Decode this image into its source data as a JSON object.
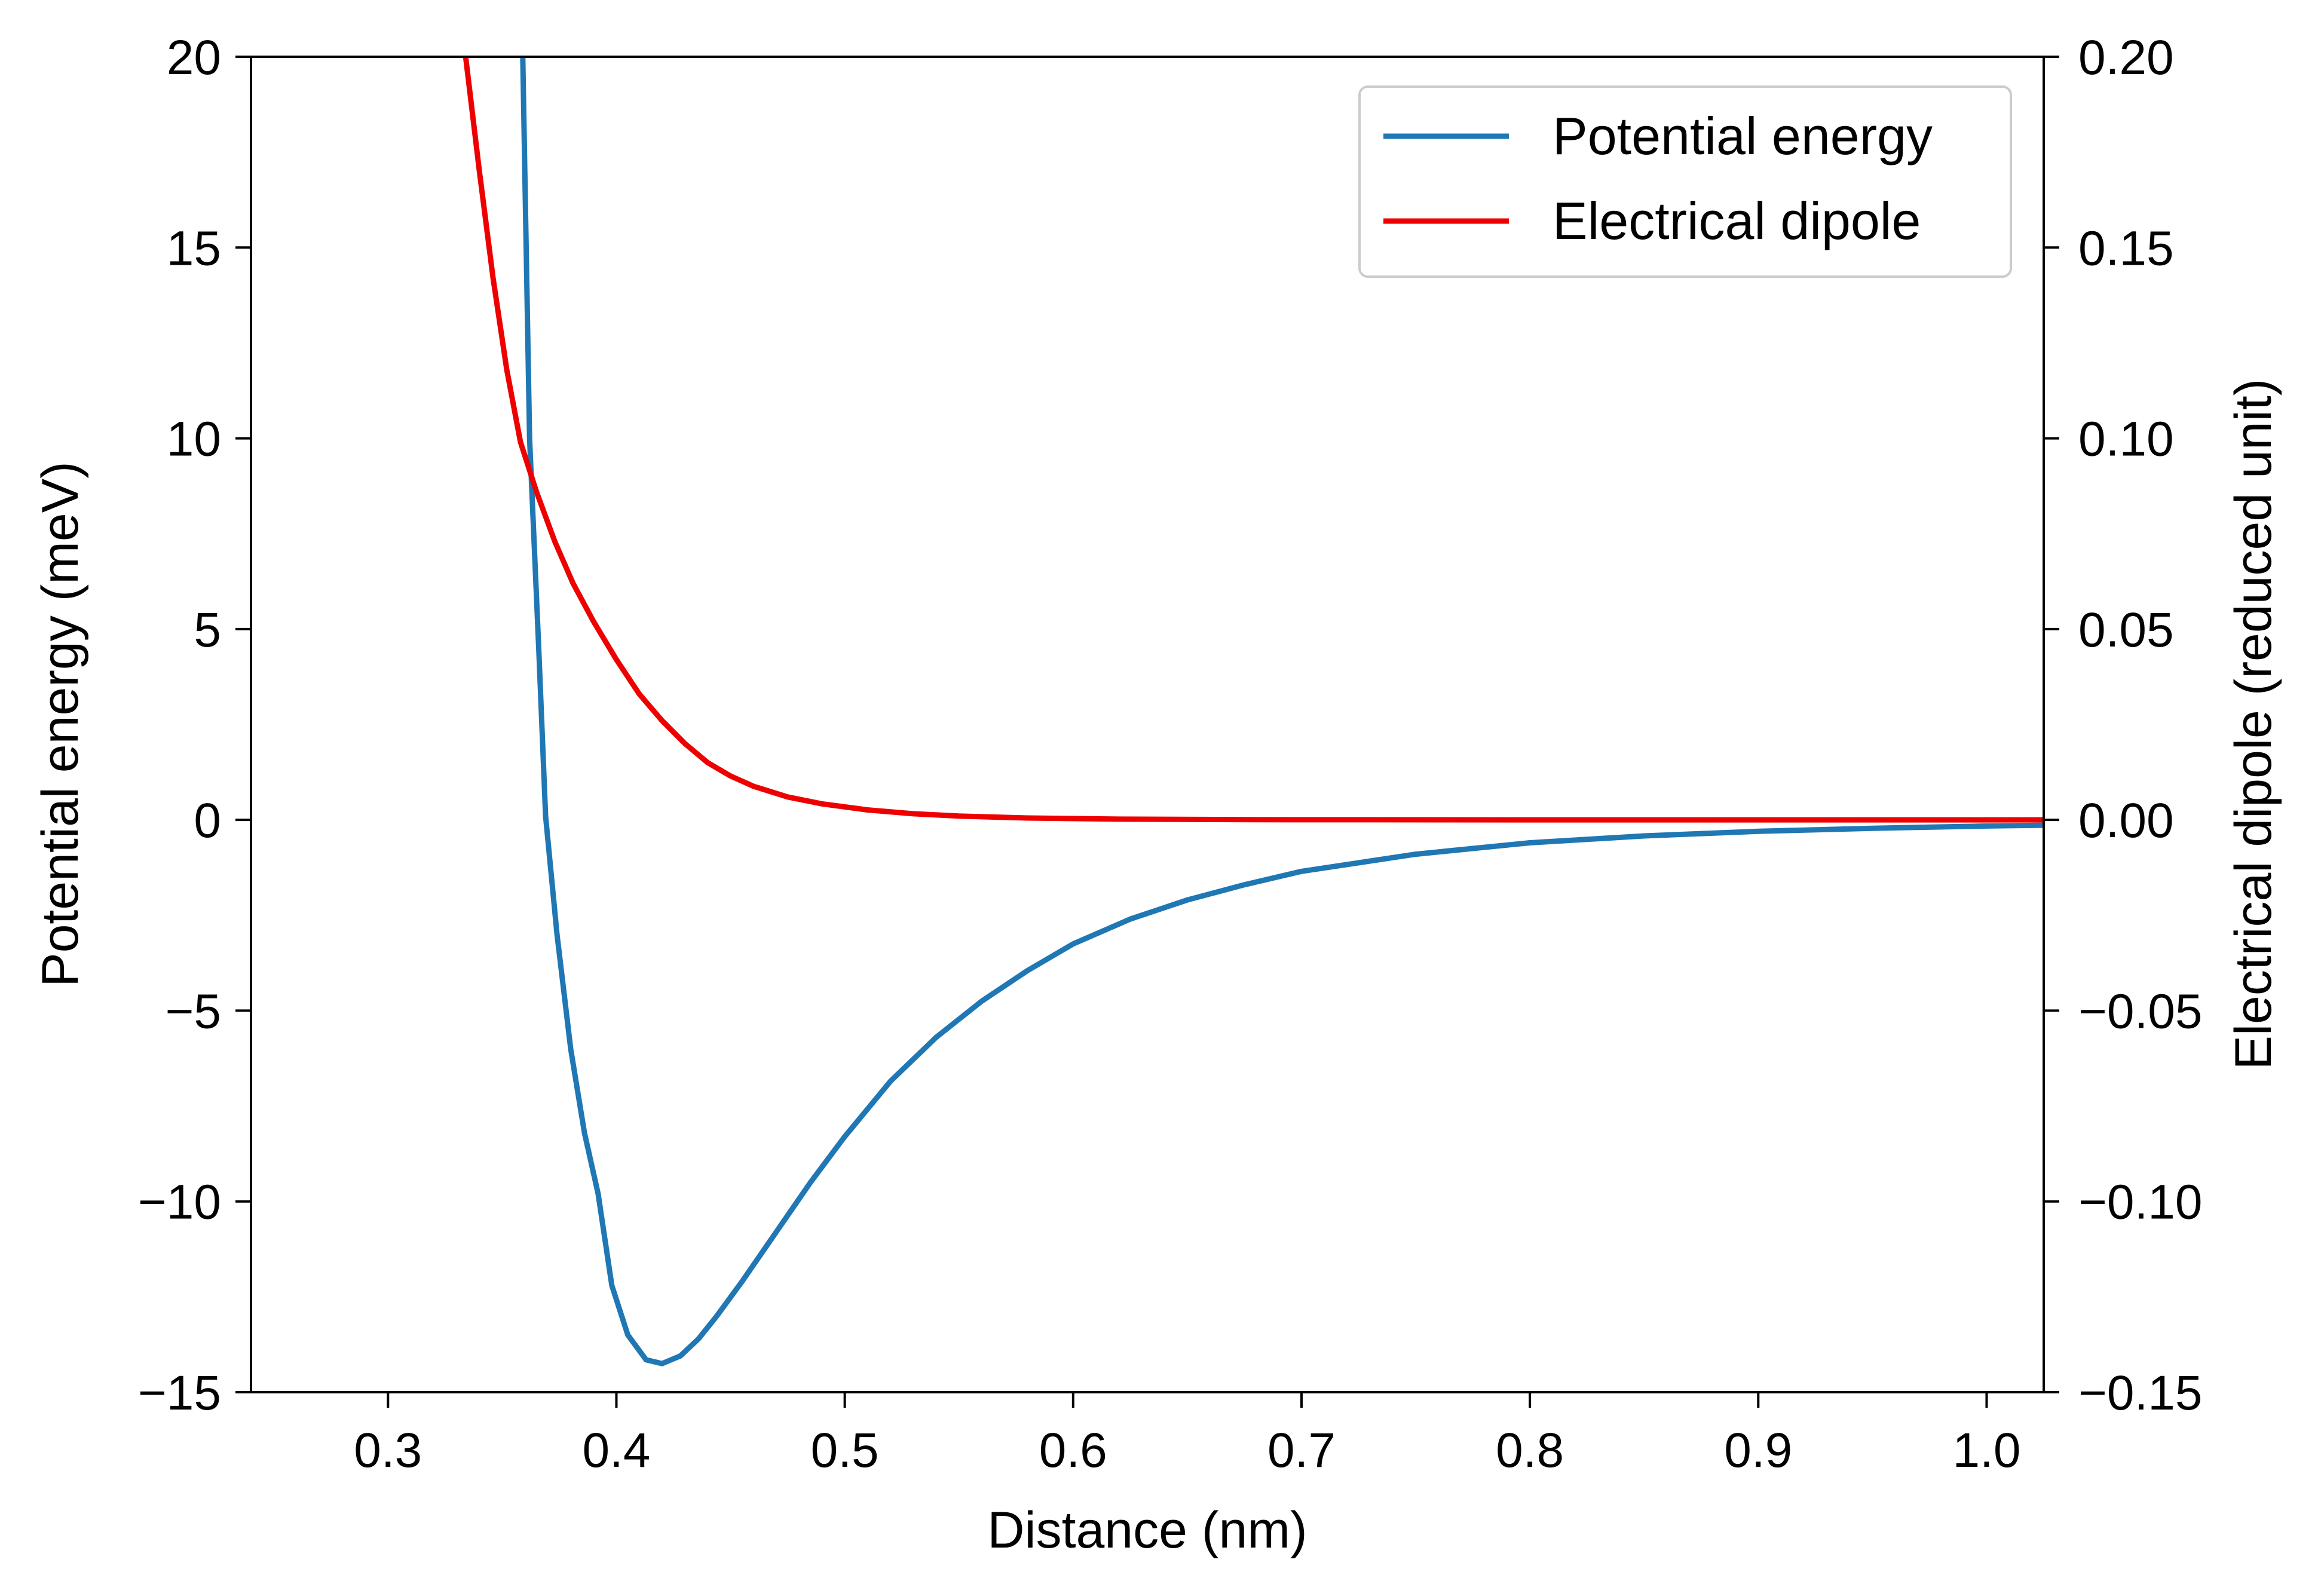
{
  "colors": {
    "potential": "#1f77b4",
    "dipole": "#ee0000",
    "axes": "#000000",
    "legend_border": "#cccccc",
    "background": "#ffffff"
  },
  "chart_data": {
    "type": "line",
    "title": "",
    "xlabel": "Distance (nm)",
    "ylabel": "Potential energy (meV)",
    "y2label": "Electrical dipole (reduced unit)",
    "xlim": [
      0.24,
      1.025
    ],
    "ylim": [
      -15,
      20
    ],
    "y2lim": [
      -0.15,
      0.2
    ],
    "grid": false,
    "legend_position": "top-right",
    "x_ticks": [
      "0.3",
      "0.4",
      "0.5",
      "0.6",
      "0.7",
      "0.8",
      "0.9",
      "1.0"
    ],
    "y_ticks": [
      "20",
      "15",
      "10",
      "5",
      "0",
      "−5",
      "−10",
      "−15"
    ],
    "y2_ticks": [
      "0.20",
      "0.15",
      "0.10",
      "0.05",
      "0.00",
      "−0.05",
      "−0.10",
      "−0.15"
    ],
    "series": [
      {
        "name": "Potential energy",
        "axis": "left",
        "color": "#1f77b4",
        "points": [
          [
            0.359,
            20.0
          ],
          [
            0.362,
            10.0
          ],
          [
            0.366,
            4.5
          ],
          [
            0.369,
            0.1
          ],
          [
            0.374,
            -3.0
          ],
          [
            0.38,
            -6.0
          ],
          [
            0.386,
            -8.2
          ],
          [
            0.392,
            -9.8
          ],
          [
            0.398,
            -12.2
          ],
          [
            0.405,
            -13.5
          ],
          [
            0.413,
            -14.15
          ],
          [
            0.42,
            -14.25
          ],
          [
            0.428,
            -14.05
          ],
          [
            0.436,
            -13.6
          ],
          [
            0.444,
            -13.0
          ],
          [
            0.455,
            -12.1
          ],
          [
            0.47,
            -10.8
          ],
          [
            0.485,
            -9.5
          ],
          [
            0.5,
            -8.3
          ],
          [
            0.52,
            -6.85
          ],
          [
            0.54,
            -5.7
          ],
          [
            0.56,
            -4.75
          ],
          [
            0.58,
            -3.95
          ],
          [
            0.6,
            -3.25
          ],
          [
            0.625,
            -2.6
          ],
          [
            0.65,
            -2.1
          ],
          [
            0.675,
            -1.7
          ],
          [
            0.7,
            -1.35
          ],
          [
            0.75,
            -0.9
          ],
          [
            0.8,
            -0.6
          ],
          [
            0.85,
            -0.42
          ],
          [
            0.9,
            -0.3
          ],
          [
            0.95,
            -0.22
          ],
          [
            1.0,
            -0.16
          ],
          [
            1.025,
            -0.14
          ]
        ]
      },
      {
        "name": "Electrical dipole",
        "axis": "right",
        "color": "#ee0000",
        "points": [
          [
            0.334,
            0.2
          ],
          [
            0.34,
            0.17
          ],
          [
            0.346,
            0.142
          ],
          [
            0.352,
            0.118
          ],
          [
            0.358,
            0.099
          ],
          [
            0.365,
            0.086
          ],
          [
            0.373,
            0.073
          ],
          [
            0.381,
            0.062
          ],
          [
            0.39,
            0.052
          ],
          [
            0.4,
            0.042
          ],
          [
            0.41,
            0.033
          ],
          [
            0.42,
            0.026
          ],
          [
            0.43,
            0.02
          ],
          [
            0.44,
            0.015
          ],
          [
            0.45,
            0.0115
          ],
          [
            0.46,
            0.0088
          ],
          [
            0.475,
            0.006
          ],
          [
            0.49,
            0.0042
          ],
          [
            0.51,
            0.0026
          ],
          [
            0.53,
            0.0016
          ],
          [
            0.55,
            0.001
          ],
          [
            0.58,
            0.0005
          ],
          [
            0.62,
            0.0002
          ],
          [
            0.68,
            5e-05
          ],
          [
            0.8,
            0.0
          ],
          [
            0.9,
            0.0
          ],
          [
            1.025,
            0.0
          ]
        ]
      }
    ]
  }
}
